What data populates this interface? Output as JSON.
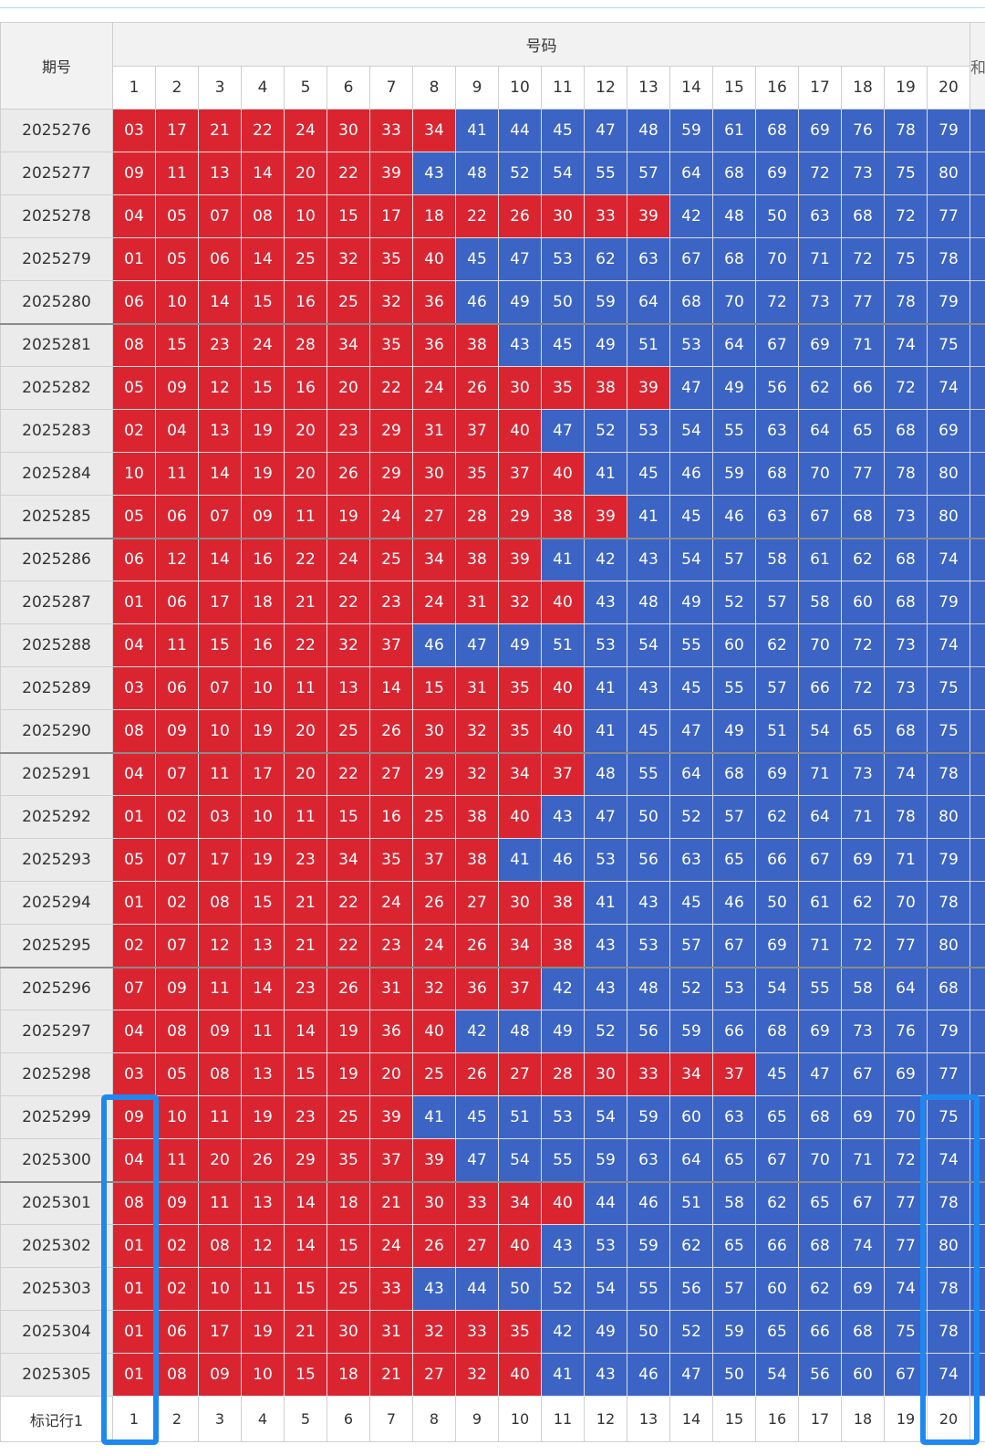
{
  "header": {
    "issue_label": "期号",
    "group_label": "号码",
    "more_label": "和"
  },
  "columns": [
    "1",
    "2",
    "3",
    "4",
    "5",
    "6",
    "7",
    "8",
    "9",
    "10",
    "11",
    "12",
    "13",
    "14",
    "15",
    "16",
    "17",
    "18",
    "19",
    "20"
  ],
  "rows": [
    {
      "issue": "2025276",
      "nums": [
        "03",
        "17",
        "21",
        "22",
        "24",
        "30",
        "33",
        "34",
        "41",
        "44",
        "45",
        "47",
        "48",
        "59",
        "61",
        "68",
        "69",
        "76",
        "78",
        "79"
      ],
      "red": 8
    },
    {
      "issue": "2025277",
      "nums": [
        "09",
        "11",
        "13",
        "14",
        "20",
        "22",
        "39",
        "43",
        "48",
        "52",
        "54",
        "55",
        "57",
        "64",
        "68",
        "69",
        "72",
        "73",
        "75",
        "80"
      ],
      "red": 7
    },
    {
      "issue": "2025278",
      "nums": [
        "04",
        "05",
        "07",
        "08",
        "10",
        "15",
        "17",
        "18",
        "22",
        "26",
        "30",
        "33",
        "39",
        "42",
        "48",
        "50",
        "63",
        "68",
        "72",
        "77"
      ],
      "red": 13
    },
    {
      "issue": "2025279",
      "nums": [
        "01",
        "05",
        "06",
        "14",
        "25",
        "32",
        "35",
        "40",
        "45",
        "47",
        "53",
        "62",
        "63",
        "67",
        "68",
        "70",
        "71",
        "72",
        "75",
        "78"
      ],
      "red": 8
    },
    {
      "issue": "2025280",
      "nums": [
        "06",
        "10",
        "14",
        "15",
        "16",
        "25",
        "32",
        "36",
        "46",
        "49",
        "50",
        "59",
        "64",
        "68",
        "70",
        "72",
        "73",
        "77",
        "78",
        "79"
      ],
      "red": 8
    },
    {
      "issue": "2025281",
      "nums": [
        "08",
        "15",
        "23",
        "24",
        "28",
        "34",
        "35",
        "36",
        "38",
        "43",
        "45",
        "49",
        "51",
        "53",
        "64",
        "67",
        "69",
        "71",
        "74",
        "75"
      ],
      "red": 9
    },
    {
      "issue": "2025282",
      "nums": [
        "05",
        "09",
        "12",
        "15",
        "16",
        "20",
        "22",
        "24",
        "26",
        "30",
        "35",
        "38",
        "39",
        "47",
        "49",
        "56",
        "62",
        "66",
        "72",
        "74"
      ],
      "red": 13
    },
    {
      "issue": "2025283",
      "nums": [
        "02",
        "04",
        "13",
        "19",
        "20",
        "23",
        "29",
        "31",
        "37",
        "40",
        "47",
        "52",
        "53",
        "54",
        "55",
        "63",
        "64",
        "65",
        "68",
        "69"
      ],
      "red": 10
    },
    {
      "issue": "2025284",
      "nums": [
        "10",
        "11",
        "14",
        "19",
        "20",
        "26",
        "29",
        "30",
        "35",
        "37",
        "40",
        "41",
        "45",
        "46",
        "59",
        "68",
        "70",
        "77",
        "78",
        "80"
      ],
      "red": 11
    },
    {
      "issue": "2025285",
      "nums": [
        "05",
        "06",
        "07",
        "09",
        "11",
        "19",
        "24",
        "27",
        "28",
        "29",
        "38",
        "39",
        "41",
        "45",
        "46",
        "63",
        "67",
        "68",
        "73",
        "80"
      ],
      "red": 12
    },
    {
      "issue": "2025286",
      "nums": [
        "06",
        "12",
        "14",
        "16",
        "22",
        "24",
        "25",
        "34",
        "38",
        "39",
        "41",
        "42",
        "43",
        "54",
        "57",
        "58",
        "61",
        "62",
        "68",
        "74"
      ],
      "red": 10
    },
    {
      "issue": "2025287",
      "nums": [
        "01",
        "06",
        "17",
        "18",
        "21",
        "22",
        "23",
        "24",
        "31",
        "32",
        "40",
        "43",
        "48",
        "49",
        "52",
        "57",
        "58",
        "60",
        "68",
        "79"
      ],
      "red": 11
    },
    {
      "issue": "2025288",
      "nums": [
        "04",
        "11",
        "15",
        "16",
        "22",
        "32",
        "37",
        "46",
        "47",
        "49",
        "51",
        "53",
        "54",
        "55",
        "60",
        "62",
        "70",
        "72",
        "73",
        "74"
      ],
      "red": 7
    },
    {
      "issue": "2025289",
      "nums": [
        "03",
        "06",
        "07",
        "10",
        "11",
        "13",
        "14",
        "15",
        "31",
        "35",
        "40",
        "41",
        "43",
        "45",
        "55",
        "57",
        "66",
        "72",
        "73",
        "75"
      ],
      "red": 11
    },
    {
      "issue": "2025290",
      "nums": [
        "08",
        "09",
        "10",
        "19",
        "20",
        "25",
        "26",
        "30",
        "32",
        "35",
        "40",
        "41",
        "45",
        "47",
        "49",
        "51",
        "54",
        "65",
        "68",
        "75"
      ],
      "red": 11
    },
    {
      "issue": "2025291",
      "nums": [
        "04",
        "07",
        "11",
        "17",
        "20",
        "22",
        "27",
        "29",
        "32",
        "34",
        "37",
        "48",
        "55",
        "64",
        "68",
        "69",
        "71",
        "73",
        "74",
        "78"
      ],
      "red": 11
    },
    {
      "issue": "2025292",
      "nums": [
        "01",
        "02",
        "03",
        "10",
        "11",
        "15",
        "16",
        "25",
        "38",
        "40",
        "43",
        "47",
        "50",
        "52",
        "57",
        "62",
        "64",
        "71",
        "78",
        "80"
      ],
      "red": 10
    },
    {
      "issue": "2025293",
      "nums": [
        "05",
        "07",
        "17",
        "19",
        "23",
        "34",
        "35",
        "37",
        "38",
        "41",
        "46",
        "53",
        "56",
        "63",
        "65",
        "66",
        "67",
        "69",
        "71",
        "79"
      ],
      "red": 9
    },
    {
      "issue": "2025294",
      "nums": [
        "01",
        "02",
        "08",
        "15",
        "21",
        "22",
        "24",
        "26",
        "27",
        "30",
        "38",
        "41",
        "43",
        "45",
        "46",
        "50",
        "61",
        "62",
        "70",
        "78"
      ],
      "red": 11
    },
    {
      "issue": "2025295",
      "nums": [
        "02",
        "07",
        "12",
        "13",
        "21",
        "22",
        "23",
        "24",
        "26",
        "34",
        "38",
        "43",
        "53",
        "57",
        "67",
        "69",
        "71",
        "72",
        "77",
        "80"
      ],
      "red": 11
    },
    {
      "issue": "2025296",
      "nums": [
        "07",
        "09",
        "11",
        "14",
        "23",
        "26",
        "31",
        "32",
        "36",
        "37",
        "42",
        "43",
        "48",
        "52",
        "53",
        "54",
        "55",
        "58",
        "64",
        "68"
      ],
      "red": 10
    },
    {
      "issue": "2025297",
      "nums": [
        "04",
        "08",
        "09",
        "11",
        "14",
        "19",
        "36",
        "40",
        "42",
        "48",
        "49",
        "52",
        "56",
        "59",
        "66",
        "68",
        "69",
        "73",
        "76",
        "79"
      ],
      "red": 8
    },
    {
      "issue": "2025298",
      "nums": [
        "03",
        "05",
        "08",
        "13",
        "15",
        "19",
        "20",
        "25",
        "26",
        "27",
        "28",
        "30",
        "33",
        "34",
        "37",
        "45",
        "47",
        "67",
        "69",
        "77"
      ],
      "red": 15
    },
    {
      "issue": "2025299",
      "nums": [
        "09",
        "10",
        "11",
        "19",
        "23",
        "25",
        "39",
        "41",
        "45",
        "51",
        "53",
        "54",
        "59",
        "60",
        "63",
        "65",
        "68",
        "69",
        "70",
        "75"
      ],
      "red": 7
    },
    {
      "issue": "2025300",
      "nums": [
        "04",
        "11",
        "20",
        "26",
        "29",
        "35",
        "37",
        "39",
        "47",
        "54",
        "55",
        "59",
        "63",
        "64",
        "65",
        "67",
        "70",
        "71",
        "72",
        "74"
      ],
      "red": 8
    },
    {
      "issue": "2025301",
      "nums": [
        "08",
        "09",
        "11",
        "13",
        "14",
        "18",
        "21",
        "30",
        "33",
        "34",
        "40",
        "44",
        "46",
        "51",
        "58",
        "62",
        "65",
        "67",
        "77",
        "78"
      ],
      "red": 11
    },
    {
      "issue": "2025302",
      "nums": [
        "01",
        "02",
        "08",
        "12",
        "14",
        "15",
        "24",
        "26",
        "27",
        "40",
        "43",
        "53",
        "59",
        "62",
        "65",
        "66",
        "68",
        "74",
        "77",
        "80"
      ],
      "red": 10
    },
    {
      "issue": "2025303",
      "nums": [
        "01",
        "02",
        "10",
        "11",
        "15",
        "25",
        "33",
        "43",
        "44",
        "50",
        "52",
        "54",
        "55",
        "56",
        "57",
        "60",
        "62",
        "69",
        "74",
        "78"
      ],
      "red": 7
    },
    {
      "issue": "2025304",
      "nums": [
        "01",
        "06",
        "17",
        "19",
        "21",
        "30",
        "31",
        "32",
        "33",
        "35",
        "42",
        "49",
        "50",
        "52",
        "59",
        "65",
        "66",
        "68",
        "75",
        "78"
      ],
      "red": 10
    },
    {
      "issue": "2025305",
      "nums": [
        "01",
        "08",
        "09",
        "10",
        "15",
        "18",
        "21",
        "27",
        "32",
        "40",
        "41",
        "43",
        "46",
        "47",
        "50",
        "54",
        "56",
        "60",
        "67",
        "74"
      ],
      "red": 10
    }
  ],
  "footer": {
    "label": "标记行1",
    "cols": [
      "1",
      "2",
      "3",
      "4",
      "5",
      "6",
      "7",
      "8",
      "9",
      "10",
      "11",
      "12",
      "13",
      "14",
      "15",
      "16",
      "17",
      "18",
      "19",
      "20"
    ]
  },
  "colors": {
    "red": "#da2531",
    "blue": "#3b64c4",
    "highlight": "#1e88f0"
  }
}
